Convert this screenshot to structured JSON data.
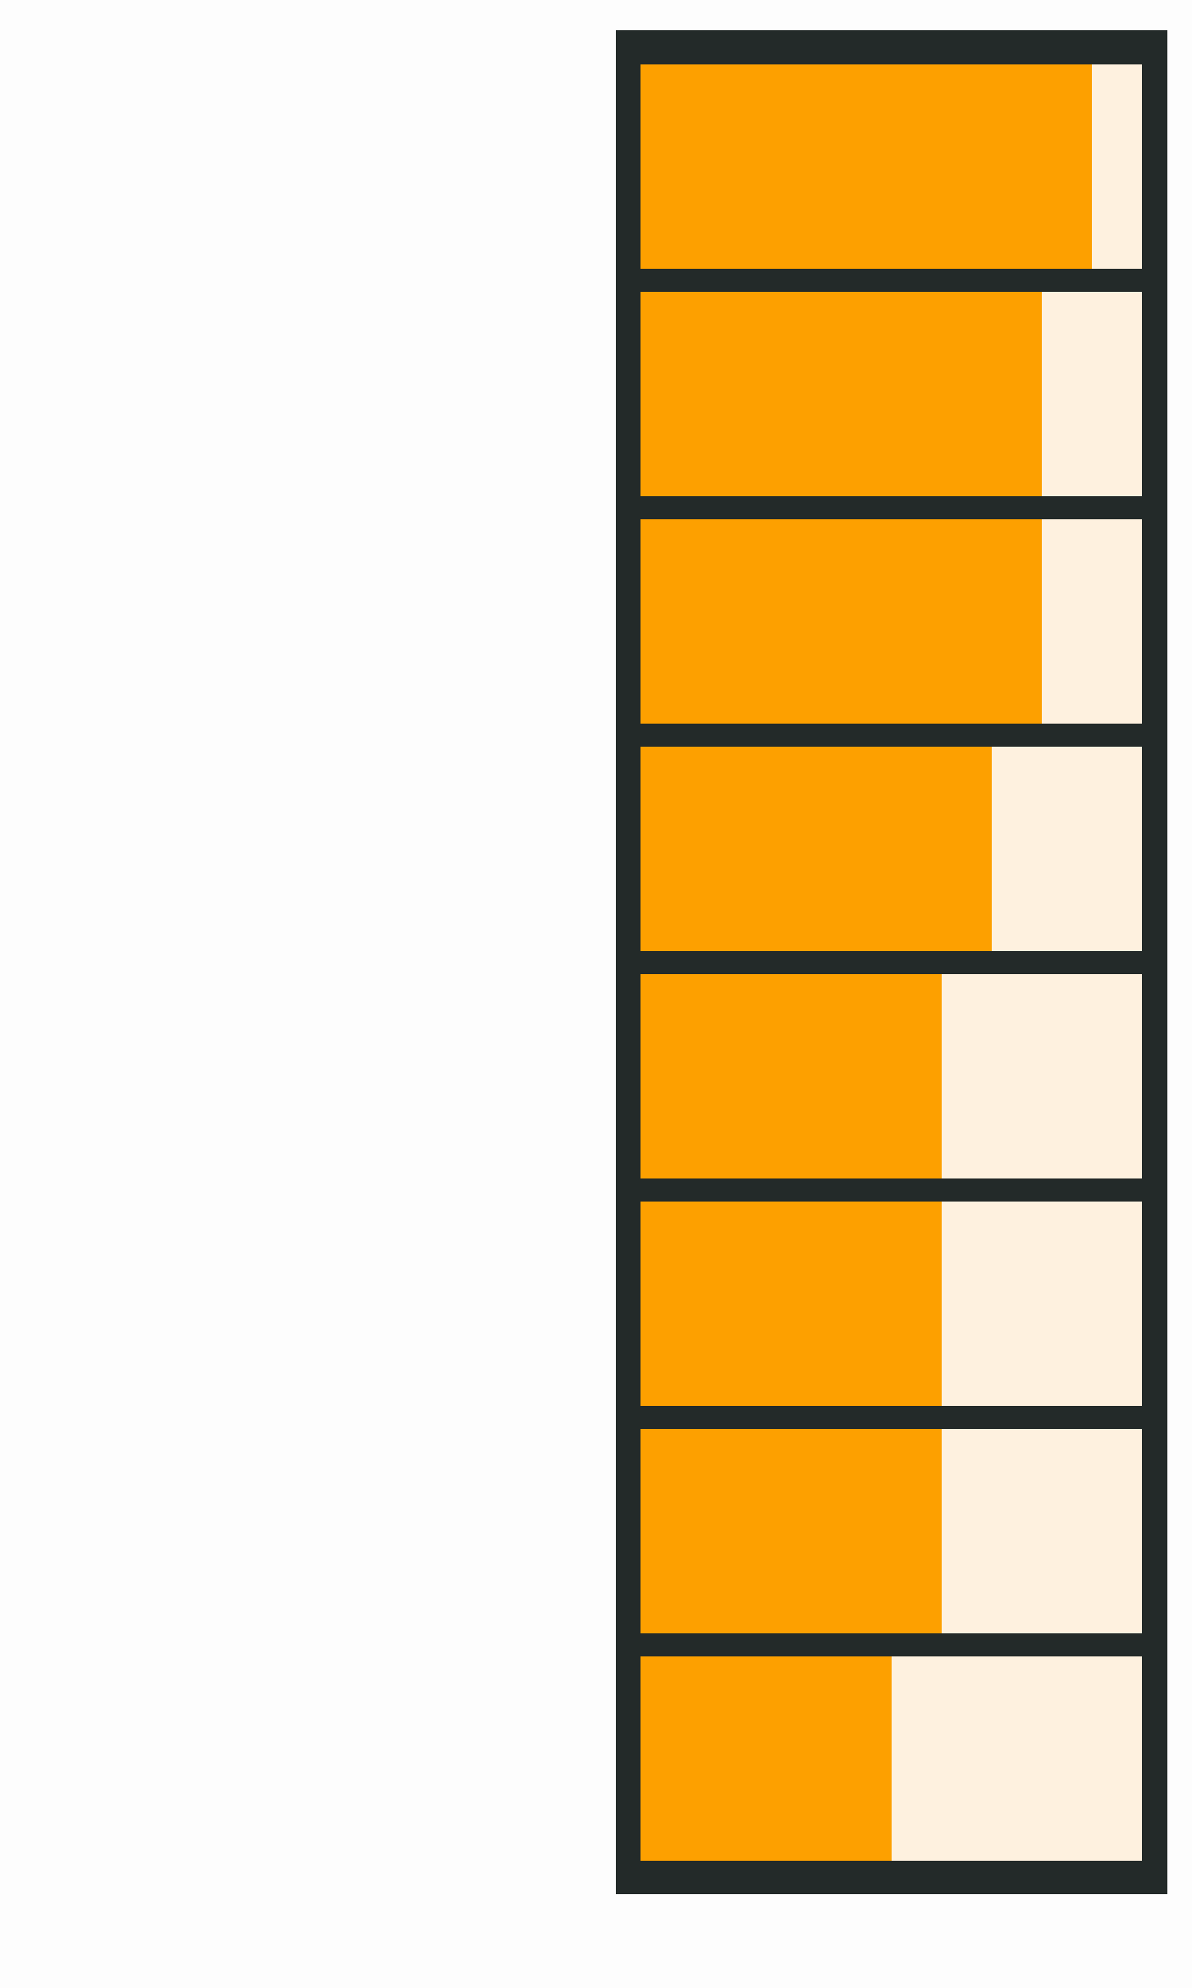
{
  "colors": {
    "background": "#fdfdfd",
    "panel": "#232a29",
    "fill": "#fda000",
    "track": "#fef1df"
  },
  "bars": [
    {
      "value": 0.9
    },
    {
      "value": 0.8
    },
    {
      "value": 0.8
    },
    {
      "value": 0.7
    },
    {
      "value": 0.6
    },
    {
      "value": 0.6
    },
    {
      "value": 0.6
    },
    {
      "value": 0.5
    }
  ]
}
